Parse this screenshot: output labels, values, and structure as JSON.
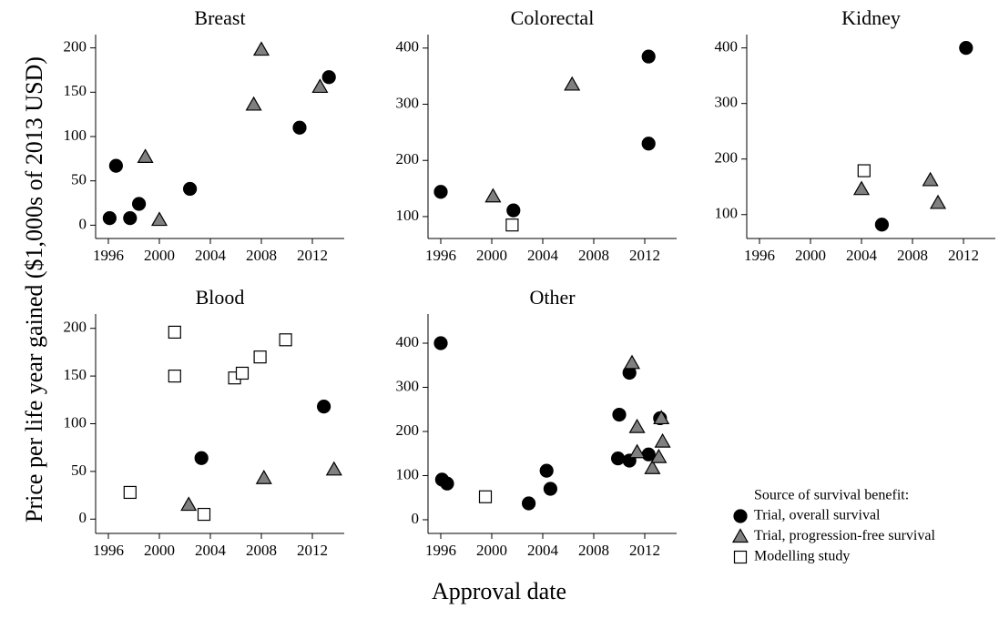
{
  "y_label": "Price per life year gained ($1,000s of 2013 USD)",
  "x_label": "Approval date",
  "legend": {
    "title": "Source of survival benefit:",
    "entries": [
      {
        "name": "Trial, overall survival",
        "marker": "circle",
        "color": "#000000"
      },
      {
        "name": "Trial, progression-free survival",
        "marker": "triangle",
        "color": "#808080"
      },
      {
        "name": "Modelling study",
        "marker": "square",
        "color": "#ffffff"
      }
    ]
  },
  "chart_data": [
    {
      "type": "scatter",
      "title": "Breast",
      "xlim": [
        1995,
        2014.5
      ],
      "xticks": [
        1996,
        2000,
        2004,
        2008,
        2012
      ],
      "ylim": [
        -15,
        215
      ],
      "yticks": [
        0,
        50,
        100,
        150,
        200
      ],
      "series": [
        {
          "x": [
            1996.1,
            1996.6,
            1997.7,
            1998.4,
            2002.4,
            2011.0,
            2013.3
          ],
          "values": [
            8,
            67,
            8,
            24,
            41,
            110,
            167
          ]
        },
        {
          "x": [
            1998.9,
            2000.0,
            2007.4,
            2008.0,
            2012.6
          ],
          "values": [
            77,
            6,
            136,
            198,
            156
          ]
        },
        {
          "x": [],
          "values": []
        }
      ]
    },
    {
      "type": "scatter",
      "title": "Colorectal",
      "xlim": [
        1995,
        2014.5
      ],
      "xticks": [
        1996,
        2000,
        2004,
        2008,
        2012
      ],
      "ylim": [
        61,
        424
      ],
      "yticks": [
        100,
        200,
        300,
        400
      ],
      "series": [
        {
          "x": [
            1996.0,
            2001.7,
            2012.3,
            2012.3
          ],
          "values": [
            144,
            111,
            385,
            230
          ]
        },
        {
          "x": [
            2000.1,
            2006.3
          ],
          "values": [
            136,
            335
          ]
        },
        {
          "x": [
            2001.6
          ],
          "values": [
            85
          ]
        }
      ]
    },
    {
      "type": "scatter",
      "title": "Kidney",
      "xlim": [
        1995,
        2014.5
      ],
      "xticks": [
        1996,
        2000,
        2004,
        2008,
        2012
      ],
      "ylim": [
        57,
        424
      ],
      "yticks": [
        100,
        200,
        300,
        400
      ],
      "series": [
        {
          "x": [
            2005.6,
            2012.2
          ],
          "values": [
            82,
            400
          ]
        },
        {
          "x": [
            2004.0,
            2009.4,
            2010.0
          ],
          "values": [
            146,
            162,
            121
          ]
        },
        {
          "x": [
            2004.2
          ],
          "values": [
            179
          ]
        }
      ]
    },
    {
      "type": "scatter",
      "title": "Blood",
      "xlim": [
        1995,
        2014.5
      ],
      "xticks": [
        1996,
        2000,
        2004,
        2008,
        2012
      ],
      "ylim": [
        -15,
        215
      ],
      "yticks": [
        0,
        50,
        100,
        150,
        200
      ],
      "series": [
        {
          "x": [
            2003.3,
            2012.9
          ],
          "values": [
            64,
            118
          ]
        },
        {
          "x": [
            2002.3,
            2008.2,
            2013.7
          ],
          "values": [
            15,
            43,
            52
          ]
        },
        {
          "x": [
            1997.7,
            2001.2,
            2001.2,
            2003.5,
            2005.9,
            2006.5,
            2007.9,
            2009.9
          ],
          "values": [
            28,
            196,
            150,
            5,
            148,
            153,
            170,
            188
          ]
        }
      ]
    },
    {
      "type": "scatter",
      "title": "Other",
      "xlim": [
        1995,
        2014.5
      ],
      "xticks": [
        1996,
        2000,
        2004,
        2008,
        2012
      ],
      "ylim": [
        -31,
        466
      ],
      "yticks": [
        0,
        100,
        200,
        300,
        400
      ],
      "series": [
        {
          "x": [
            1996.0,
            1996.1,
            1996.5,
            2002.9,
            2004.3,
            2004.6,
            2010.0,
            2009.9,
            2010.8,
            2010.8,
            2012.3,
            2013.2
          ],
          "values": [
            400,
            91,
            82,
            37,
            111,
            70,
            238,
            139,
            134,
            333,
            148,
            230
          ]
        },
        {
          "x": [
            2011.0,
            2011.4,
            2011.4,
            2012.6,
            2013.1,
            2013.3,
            2013.4
          ],
          "values": [
            355,
            210,
            153,
            117,
            142,
            230,
            177
          ]
        },
        {
          "x": [
            1999.5
          ],
          "values": [
            52
          ]
        }
      ]
    }
  ]
}
